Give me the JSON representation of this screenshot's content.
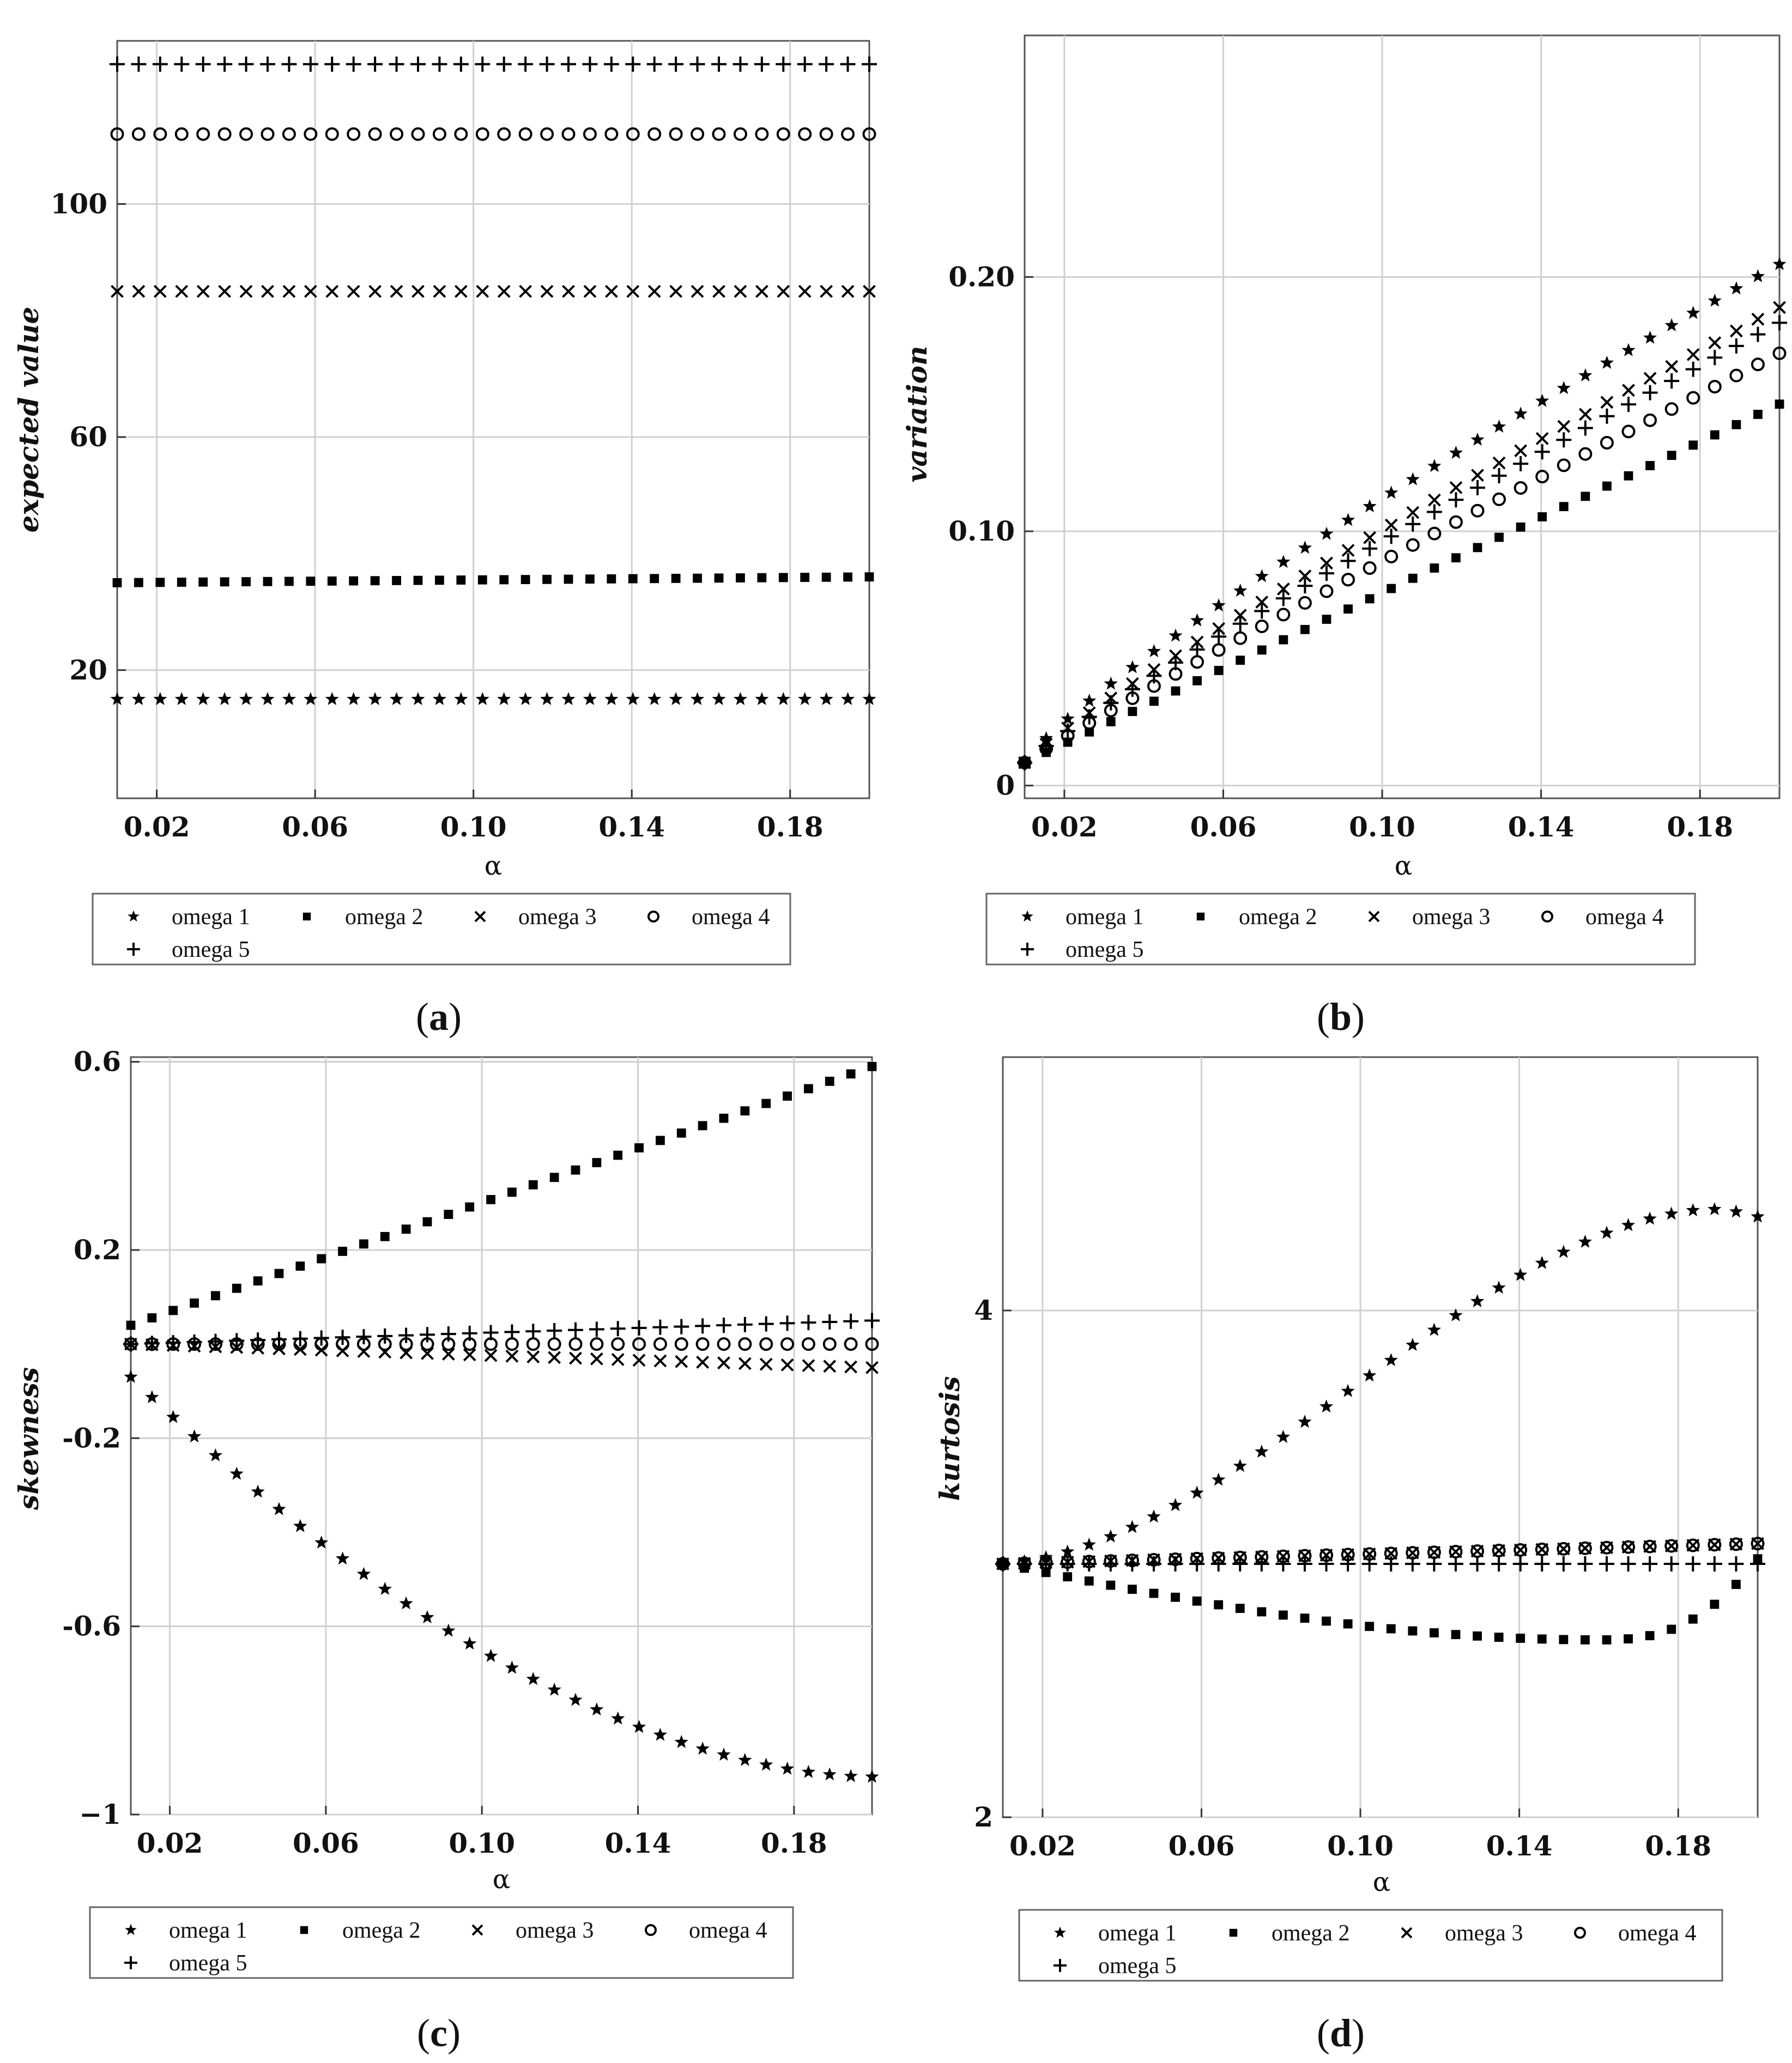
{
  "figure": {
    "panel_labels": [
      "a",
      "b",
      "c",
      "d"
    ]
  },
  "chart_data": [
    {
      "panel": "a",
      "type": "scatter",
      "xlabel": "α",
      "ylabel": "expected value",
      "xlim": [
        0.01,
        0.2
      ],
      "ylim": [
        -2,
        128
      ],
      "x_ticks": [
        0.02,
        0.06,
        0.1,
        0.14,
        0.18
      ],
      "x_tick_labels": [
        "0.02",
        "0.06",
        "0.10",
        "0.14",
        "0.18"
      ],
      "y_ticks": [
        20,
        60,
        100
      ],
      "y_tick_labels": [
        "20",
        "60",
        "100"
      ],
      "grid": true,
      "legend": [
        "omega 1",
        "omega 2",
        "omega 3",
        "omega 4",
        "omega 5"
      ],
      "legend_placement": "below",
      "series": [
        {
          "name": "omega 1",
          "marker": "star",
          "x_range": [
            0.01,
            0.2,
            36
          ],
          "y_start": 15,
          "y_end": 15,
          "curve": "linear"
        },
        {
          "name": "omega 2",
          "marker": "square",
          "x_range": [
            0.01,
            0.2,
            36
          ],
          "y_start": 35,
          "y_end": 36,
          "curve": "linear"
        },
        {
          "name": "omega 3",
          "marker": "x",
          "x_range": [
            0.01,
            0.2,
            36
          ],
          "y_start": 85,
          "y_end": 85,
          "curve": "linear"
        },
        {
          "name": "omega 4",
          "marker": "circle",
          "x_range": [
            0.01,
            0.2,
            36
          ],
          "y_start": 112,
          "y_end": 112,
          "curve": "linear"
        },
        {
          "name": "omega 5",
          "marker": "plus",
          "x_range": [
            0.01,
            0.2,
            36
          ],
          "y_start": 124,
          "y_end": 124,
          "curve": "linear"
        }
      ]
    },
    {
      "panel": "b",
      "type": "scatter",
      "xlabel": "α",
      "ylabel": "variation",
      "xlim": [
        0.01,
        0.2
      ],
      "ylim": [
        -0.005,
        0.295
      ],
      "x_ticks": [
        0.02,
        0.06,
        0.1,
        0.14,
        0.18
      ],
      "x_tick_labels": [
        "0.02",
        "0.06",
        "0.10",
        "0.14",
        "0.18"
      ],
      "y_ticks": [
        0,
        0.1,
        0.2
      ],
      "y_tick_labels": [
        "0",
        "0.10",
        "0.20"
      ],
      "grid": true,
      "legend": [
        "omega 1",
        "omega 2",
        "omega 3",
        "omega 4",
        "omega 5"
      ],
      "legend_placement": "below",
      "series": [
        {
          "name": "omega 1",
          "marker": "star",
          "x_range": [
            0.01,
            0.2,
            36
          ],
          "y_start": 0.009,
          "y_end": 0.205,
          "curve": "power",
          "exponent": 0.85
        },
        {
          "name": "omega 2",
          "marker": "square",
          "x_range": [
            0.01,
            0.2,
            36
          ],
          "y_start": 0.009,
          "y_end": 0.15,
          "curve": "power",
          "exponent": 1.0
        },
        {
          "name": "omega 3",
          "marker": "x",
          "x_range": [
            0.01,
            0.2,
            36
          ],
          "y_start": 0.009,
          "y_end": 0.188,
          "curve": "power",
          "exponent": 0.9
        },
        {
          "name": "omega 4",
          "marker": "circle",
          "x_range": [
            0.01,
            0.2,
            36
          ],
          "y_start": 0.009,
          "y_end": 0.17,
          "curve": "power",
          "exponent": 0.95
        },
        {
          "name": "omega 5",
          "marker": "plus",
          "x_range": [
            0.01,
            0.2,
            36
          ],
          "y_start": 0.009,
          "y_end": 0.182,
          "curve": "power",
          "exponent": 0.92
        }
      ]
    },
    {
      "panel": "c",
      "type": "scatter",
      "xlabel": "α",
      "ylabel": "skewness",
      "xlim": [
        0.01,
        0.2
      ],
      "ylim": [
        -1.0,
        0.61
      ],
      "x_ticks": [
        0.02,
        0.06,
        0.1,
        0.14,
        0.18
      ],
      "x_tick_labels": [
        "0.02",
        "0.06",
        "0.10",
        "0.14",
        "0.18"
      ],
      "y_ticks": [
        -1,
        -0.6,
        -0.2,
        0.2,
        0.6
      ],
      "y_tick_labels": [
        "−1",
        "-0.6",
        "-0.2",
        "0.2",
        "0.6"
      ],
      "grid": true,
      "legend": [
        "omega 1",
        "omega 2",
        "omega 3",
        "omega 4",
        "omega 5"
      ],
      "legend_placement": "below",
      "series": [
        {
          "name": "omega 1",
          "marker": "star",
          "x_range": [
            0.01,
            0.2,
            36
          ],
          "y_start": -0.07,
          "y_end": -0.92,
          "curve": "ease-out"
        },
        {
          "name": "omega 2",
          "marker": "square",
          "x_range": [
            0.01,
            0.2,
            36
          ],
          "y_start": 0.04,
          "y_end": 0.59,
          "curve": "linear"
        },
        {
          "name": "omega 3",
          "marker": "x",
          "x_range": [
            0.01,
            0.2,
            36
          ],
          "y_start": 0.0,
          "y_end": -0.05,
          "curve": "linear"
        },
        {
          "name": "omega 4",
          "marker": "circle",
          "x_range": [
            0.01,
            0.2,
            36
          ],
          "y_start": 0.0,
          "y_end": 0.0,
          "curve": "linear"
        },
        {
          "name": "omega 5",
          "marker": "plus",
          "x_range": [
            0.01,
            0.2,
            36
          ],
          "y_start": 0.0,
          "y_end": 0.05,
          "curve": "linear"
        }
      ]
    },
    {
      "panel": "d",
      "type": "scatter",
      "xlabel": "α",
      "ylabel": "kurtosis",
      "xlim": [
        0.01,
        0.2
      ],
      "ylim": [
        2.0,
        5.0
      ],
      "x_ticks": [
        0.02,
        0.06,
        0.1,
        0.14,
        0.18
      ],
      "x_tick_labels": [
        "0.02",
        "0.06",
        "0.10",
        "0.14",
        "0.18"
      ],
      "y_ticks": [
        2,
        4
      ],
      "y_tick_labels": [
        "2",
        "4"
      ],
      "grid": true,
      "legend": [
        "omega 1",
        "omega 2",
        "omega 3",
        "omega 4",
        "omega 5"
      ],
      "legend_placement": "below",
      "series": [
        {
          "name": "omega 1",
          "marker": "star",
          "x_range": [
            0.01,
            0.2,
            36
          ],
          "y_start": 3.0,
          "y_end": 4.37,
          "curve": "arch",
          "peak": 4.4,
          "peak_x": 0.187
        },
        {
          "name": "omega 2",
          "marker": "square",
          "x_range": [
            0.01,
            0.2,
            36
          ],
          "y_start": 3.0,
          "y_end": 3.02,
          "curve": "dip",
          "min": 2.7,
          "min_x": 0.16
        },
        {
          "name": "omega 3",
          "marker": "x",
          "x_range": [
            0.01,
            0.2,
            36
          ],
          "y_start": 3.0,
          "y_end": 3.08,
          "curve": "linear"
        },
        {
          "name": "omega 4",
          "marker": "circle",
          "x_range": [
            0.01,
            0.2,
            36
          ],
          "y_start": 3.0,
          "y_end": 3.08,
          "curve": "linear"
        },
        {
          "name": "omega 5",
          "marker": "plus",
          "x_range": [
            0.01,
            0.2,
            36
          ],
          "y_start": 3.0,
          "y_end": 3.0,
          "curve": "linear"
        }
      ]
    }
  ]
}
